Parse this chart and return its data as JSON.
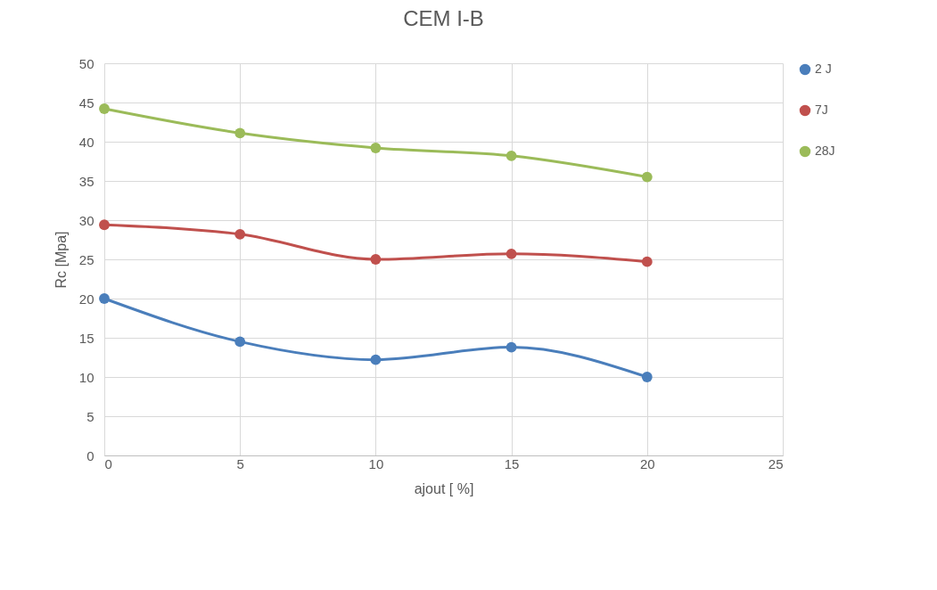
{
  "chart_data": {
    "type": "line",
    "title": "CEM I-B",
    "xlabel": "ajout [ %]",
    "ylabel": "Rc [Mpa]",
    "x": [
      0,
      5,
      10,
      15,
      20
    ],
    "series": [
      {
        "name": "2 J",
        "color": "#4a7ebb",
        "values": [
          20,
          14.5,
          12.2,
          13.8,
          10
        ]
      },
      {
        "name": "7J",
        "color": "#c0504d",
        "values": [
          29.4,
          28.2,
          25,
          25.7,
          24.7
        ]
      },
      {
        "name": "28J",
        "color": "#9bbb59",
        "values": [
          44.2,
          41.1,
          39.2,
          38.2,
          35.5
        ]
      }
    ],
    "xlim": [
      0,
      25
    ],
    "xticks": [
      0,
      5,
      10,
      15,
      20,
      25
    ],
    "ylim": [
      0,
      50
    ],
    "yticks": [
      0,
      5,
      10,
      15,
      20,
      25,
      30,
      35,
      40,
      45,
      50
    ],
    "grid": true,
    "legend": "right",
    "marker": "circle",
    "line_style": "solid"
  }
}
